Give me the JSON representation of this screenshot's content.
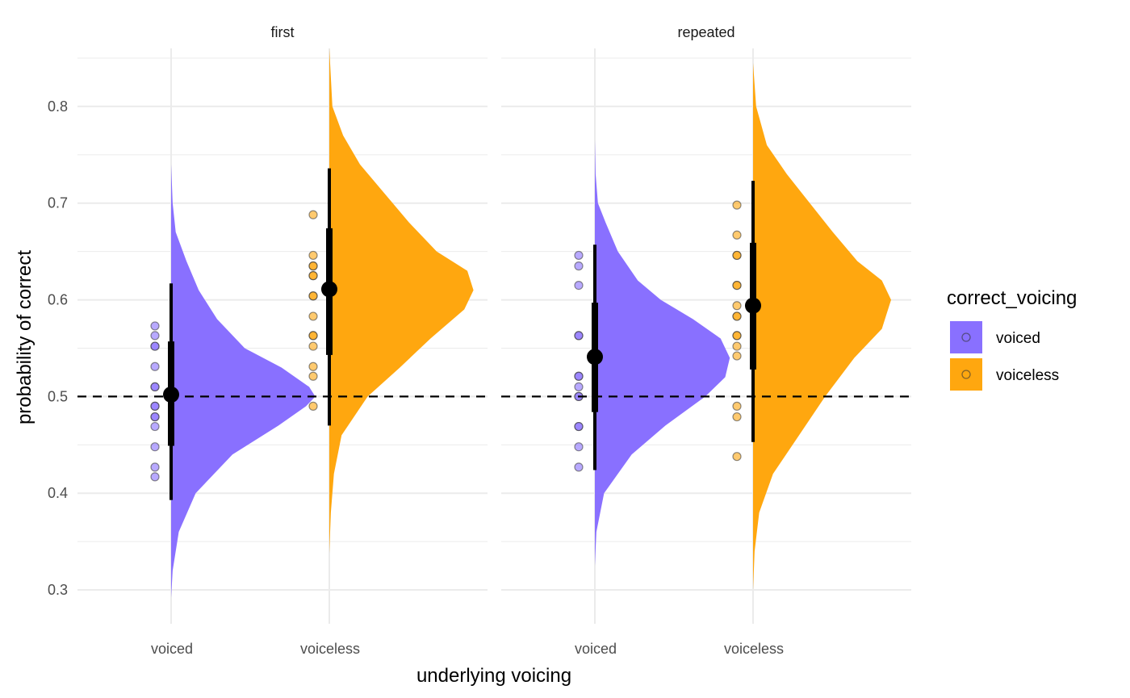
{
  "chart_data": {
    "type": "raincloud",
    "xlabel": "underlying voicing",
    "ylabel": "probability of correct",
    "ylim": [
      0.265,
      0.86
    ],
    "yticks": [
      0.3,
      0.4,
      0.5,
      0.6,
      0.7,
      0.8
    ],
    "ytick_labels": [
      "0.3",
      "0.4",
      "0.5",
      "0.6",
      "0.7",
      "0.8"
    ],
    "categories": [
      "voiced",
      "voiceless"
    ],
    "reference_line": {
      "y": 0.5,
      "style": "dashed"
    },
    "grid": true,
    "legend": {
      "title": "correct_voicing",
      "position": "right",
      "entries": [
        {
          "label": "voiced",
          "color": "#8970FF"
        },
        {
          "label": "voiceless",
          "color": "#FFA70F"
        }
      ]
    },
    "panels": [
      {
        "strip": "first",
        "groups": [
          {
            "category": "voiced",
            "color": "#8970FF",
            "median": 0.502,
            "interval_66": [
              0.449,
              0.557
            ],
            "interval_95": [
              0.393,
              0.617
            ],
            "points": [
              0.573,
              0.563,
              0.552,
              0.552,
              0.531,
              0.51,
              0.51,
              0.49,
              0.49,
              0.479,
              0.479,
              0.469,
              0.448,
              0.427,
              0.417
            ],
            "density": [
              [
                0.292,
                0.0
              ],
              [
                0.32,
                0.01
              ],
              [
                0.36,
                0.05
              ],
              [
                0.4,
                0.16
              ],
              [
                0.44,
                0.4
              ],
              [
                0.47,
                0.7
              ],
              [
                0.49,
                0.88
              ],
              [
                0.5,
                0.94
              ],
              [
                0.51,
                0.9
              ],
              [
                0.53,
                0.72
              ],
              [
                0.55,
                0.48
              ],
              [
                0.58,
                0.3
              ],
              [
                0.61,
                0.18
              ],
              [
                0.64,
                0.1
              ],
              [
                0.67,
                0.03
              ],
              [
                0.7,
                0.01
              ],
              [
                0.74,
                0.0
              ]
            ]
          },
          {
            "category": "voiceless",
            "color": "#FFA70F",
            "median": 0.611,
            "interval_66": [
              0.543,
              0.674
            ],
            "interval_95": [
              0.47,
              0.736
            ],
            "points": [
              0.688,
              0.646,
              0.635,
              0.635,
              0.625,
              0.625,
              0.604,
              0.604,
              0.583,
              0.563,
              0.563,
              0.552,
              0.531,
              0.521,
              0.49
            ],
            "density": [
              [
                0.338,
                0.0
              ],
              [
                0.38,
                0.01
              ],
              [
                0.42,
                0.03
              ],
              [
                0.46,
                0.08
              ],
              [
                0.5,
                0.25
              ],
              [
                0.53,
                0.46
              ],
              [
                0.56,
                0.66
              ],
              [
                0.59,
                0.88
              ],
              [
                0.61,
                0.94
              ],
              [
                0.63,
                0.9
              ],
              [
                0.65,
                0.7
              ],
              [
                0.68,
                0.52
              ],
              [
                0.71,
                0.36
              ],
              [
                0.74,
                0.2
              ],
              [
                0.77,
                0.09
              ],
              [
                0.8,
                0.02
              ],
              [
                0.86,
                0.0
              ]
            ]
          }
        ]
      },
      {
        "strip": "repeated",
        "groups": [
          {
            "category": "voiced",
            "color": "#8970FF",
            "median": 0.541,
            "interval_66": [
              0.484,
              0.597
            ],
            "interval_95": [
              0.424,
              0.657
            ],
            "points": [
              0.646,
              0.635,
              0.615,
              0.563,
              0.563,
              0.521,
              0.521,
              0.51,
              0.5,
              0.5,
              0.469,
              0.469,
              0.448,
              0.427
            ],
            "density": [
              [
                0.325,
                0.0
              ],
              [
                0.36,
                0.01
              ],
              [
                0.4,
                0.06
              ],
              [
                0.44,
                0.24
              ],
              [
                0.47,
                0.46
              ],
              [
                0.5,
                0.72
              ],
              [
                0.52,
                0.85
              ],
              [
                0.54,
                0.88
              ],
              [
                0.56,
                0.82
              ],
              [
                0.58,
                0.64
              ],
              [
                0.6,
                0.43
              ],
              [
                0.62,
                0.28
              ],
              [
                0.65,
                0.15
              ],
              [
                0.68,
                0.07
              ],
              [
                0.7,
                0.02
              ],
              [
                0.73,
                0.005
              ],
              [
                0.765,
                0.0
              ]
            ]
          },
          {
            "category": "voiceless",
            "color": "#FFA70F",
            "median": 0.594,
            "interval_66": [
              0.528,
              0.659
            ],
            "interval_95": [
              0.453,
              0.723
            ],
            "points": [
              0.698,
              0.667,
              0.646,
              0.646,
              0.615,
              0.615,
              0.594,
              0.583,
              0.583,
              0.563,
              0.563,
              0.552,
              0.542,
              0.49,
              0.479,
              0.438
            ],
            "density": [
              [
                0.3,
                0.0
              ],
              [
                0.34,
                0.01
              ],
              [
                0.38,
                0.04
              ],
              [
                0.42,
                0.13
              ],
              [
                0.46,
                0.3
              ],
              [
                0.5,
                0.47
              ],
              [
                0.54,
                0.66
              ],
              [
                0.57,
                0.84
              ],
              [
                0.6,
                0.9
              ],
              [
                0.62,
                0.84
              ],
              [
                0.64,
                0.68
              ],
              [
                0.67,
                0.52
              ],
              [
                0.7,
                0.37
              ],
              [
                0.73,
                0.22
              ],
              [
                0.76,
                0.09
              ],
              [
                0.8,
                0.02
              ],
              [
                0.845,
                0.0
              ]
            ]
          }
        ]
      }
    ]
  }
}
